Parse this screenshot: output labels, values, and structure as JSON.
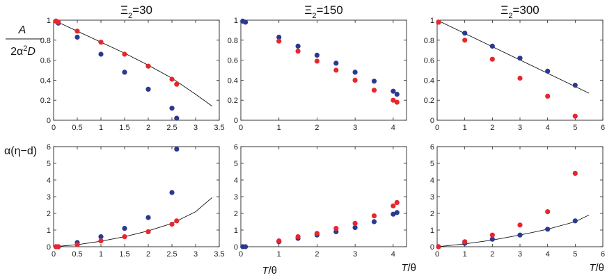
{
  "figure": {
    "row_labels": {
      "top": {
        "num": "A",
        "den_pre": "2",
        "den_alpha": "α",
        "den_sup": "2",
        "den_post": "D"
      },
      "bottom": "α(η−d)"
    },
    "xlabel": "T/θ",
    "xlabel_parts": {
      "italic": "T",
      "rest": "/θ"
    }
  },
  "colors": {
    "blue": "#2b3990",
    "red": "#e8262c",
    "curve": "#111111"
  },
  "chart_data": [
    {
      "type": "scatter",
      "id": "top-30",
      "title": "Ξ2=30",
      "title_base": "Ξ",
      "title_sub": "2",
      "title_rest": "=30",
      "xlim": [
        0,
        3.5
      ],
      "ylim": [
        0,
        1
      ],
      "xticks": [
        0,
        0.5,
        1,
        1.5,
        2,
        2.5,
        3,
        3.5
      ],
      "xtick_labels": [
        "0",
        "0.5",
        "1",
        "1.5",
        "2",
        "2.5",
        "3",
        "3.5"
      ],
      "yticks": [
        0,
        0.2,
        0.4,
        0.6,
        0.8,
        1
      ],
      "ytick_labels": [
        "0",
        "0.2",
        "0.4",
        "0.6",
        "0.8",
        "1"
      ],
      "series": [
        {
          "color": "blue",
          "x": [
            0.05,
            0.1,
            0.5,
            1.0,
            1.5,
            2.0,
            2.5,
            2.6
          ],
          "y": [
            0.99,
            0.97,
            0.83,
            0.66,
            0.48,
            0.31,
            0.12,
            0.02
          ]
        },
        {
          "color": "red",
          "x": [
            0.05,
            0.1,
            0.5,
            1.0,
            1.5,
            2.0,
            2.5,
            2.6
          ],
          "y": [
            0.99,
            0.98,
            0.89,
            0.78,
            0.66,
            0.54,
            0.41,
            0.36
          ]
        }
      ],
      "curve": {
        "x": [
          0,
          0.5,
          1,
          1.5,
          2,
          2.5,
          3,
          3.35
        ],
        "y": [
          1,
          0.89,
          0.78,
          0.67,
          0.55,
          0.42,
          0.26,
          0.14
        ]
      }
    },
    {
      "type": "scatter",
      "id": "top-150",
      "title": "Ξ2=150",
      "title_base": "Ξ",
      "title_sub": "2",
      "title_rest": "=150",
      "xlim": [
        0,
        4.35
      ],
      "ylim": [
        0,
        1
      ],
      "xticks": [
        0,
        1,
        2,
        3,
        4
      ],
      "xtick_labels": [
        "0",
        "1",
        "2",
        "3",
        "4"
      ],
      "yticks": [
        0,
        0.2,
        0.4,
        0.6,
        0.8,
        1
      ],
      "ytick_labels": [
        "0",
        "0.2",
        "0.4",
        "0.6",
        "0.8",
        "1"
      ],
      "series": [
        {
          "color": "blue",
          "x": [
            0.05,
            0.12,
            1.0,
            1.5,
            2.0,
            2.5,
            3.0,
            3.5,
            4.0,
            4.1
          ],
          "y": [
            0.99,
            0.98,
            0.83,
            0.74,
            0.65,
            0.57,
            0.48,
            0.39,
            0.29,
            0.26
          ]
        },
        {
          "color": "red",
          "x": [
            1.0,
            1.5,
            2.0,
            2.5,
            3.0,
            3.5,
            4.0,
            4.1
          ],
          "y": [
            0.79,
            0.69,
            0.59,
            0.5,
            0.4,
            0.3,
            0.2,
            0.18
          ]
        }
      ]
    },
    {
      "type": "scatter",
      "id": "top-300",
      "title": "Ξ2=300",
      "title_base": "Ξ",
      "title_sub": "2",
      "title_rest": "=300",
      "xlim": [
        0,
        6
      ],
      "ylim": [
        0,
        1
      ],
      "xticks": [
        0,
        1,
        2,
        3,
        4,
        5,
        6
      ],
      "xtick_labels": [
        "0",
        "1",
        "2",
        "3",
        "4",
        "5",
        "6"
      ],
      "yticks": [
        0,
        0.2,
        0.4,
        0.6,
        0.8,
        1
      ],
      "ytick_labels": [
        "0",
        "0.2",
        "0.4",
        "0.6",
        "0.8",
        "1"
      ],
      "series": [
        {
          "color": "blue",
          "x": [
            0.05,
            1,
            2,
            3,
            4,
            5
          ],
          "y": [
            0.98,
            0.87,
            0.74,
            0.62,
            0.49,
            0.35
          ]
        },
        {
          "color": "red",
          "x": [
            0.05,
            1,
            2,
            3,
            4,
            5
          ],
          "y": [
            0.98,
            0.8,
            0.61,
            0.42,
            0.24,
            0.04
          ]
        }
      ],
      "curve": {
        "x": [
          0,
          5.5
        ],
        "y": [
          1,
          0.27
        ]
      }
    },
    {
      "type": "scatter",
      "id": "bottom-30",
      "xlim": [
        0,
        3.5
      ],
      "ylim": [
        0,
        6
      ],
      "xticks": [
        0,
        0.5,
        1,
        1.5,
        2,
        2.5,
        3,
        3.5
      ],
      "xtick_labels": [
        "0",
        "0.5",
        "1",
        "1.5",
        "2",
        "2.5",
        "3",
        "3.5"
      ],
      "yticks": [
        0,
        1,
        2,
        3,
        4,
        5,
        6
      ],
      "ytick_labels": [
        "0",
        "1",
        "2",
        "3",
        "4",
        "5",
        "6"
      ],
      "series": [
        {
          "color": "blue",
          "x": [
            0.05,
            0.1,
            0.5,
            1.0,
            1.5,
            2.0,
            2.5,
            2.6
          ],
          "y": [
            0.0,
            0.0,
            0.25,
            0.6,
            1.1,
            1.75,
            3.25,
            5.85
          ]
        },
        {
          "color": "red",
          "x": [
            0.05,
            0.1,
            0.5,
            1.0,
            1.5,
            2.0,
            2.5,
            2.6
          ],
          "y": [
            0.0,
            0.0,
            0.12,
            0.35,
            0.6,
            0.9,
            1.35,
            1.55
          ]
        }
      ],
      "curve": {
        "x": [
          0,
          0.5,
          1,
          1.5,
          2,
          2.5,
          3,
          3.35
        ],
        "y": [
          0,
          0.12,
          0.33,
          0.6,
          0.95,
          1.4,
          2.1,
          2.95
        ]
      }
    },
    {
      "type": "scatter",
      "id": "bottom-150",
      "xlim": [
        0,
        4.35
      ],
      "ylim": [
        0,
        6
      ],
      "xticks": [
        0,
        1,
        2,
        3,
        4
      ],
      "xtick_labels": [
        "0",
        "1",
        "2",
        "3",
        "4"
      ],
      "yticks": [
        0,
        1,
        2,
        3,
        4,
        5,
        6
      ],
      "ytick_labels": [
        "0",
        "1",
        "2",
        "3",
        "4",
        "5",
        "6"
      ],
      "series": [
        {
          "color": "blue",
          "x": [
            0.05,
            0.12,
            1.0,
            1.5,
            2.0,
            2.5,
            3.0,
            3.5,
            4.0,
            4.1
          ],
          "y": [
            0.0,
            0.0,
            0.3,
            0.5,
            0.7,
            0.9,
            1.15,
            1.5,
            1.95,
            2.05
          ]
        },
        {
          "color": "red",
          "x": [
            1.0,
            1.5,
            2.0,
            2.5,
            3.0,
            3.5,
            4.0,
            4.1
          ],
          "y": [
            0.35,
            0.6,
            0.8,
            1.1,
            1.4,
            1.85,
            2.45,
            2.65
          ]
        }
      ]
    },
    {
      "type": "scatter",
      "id": "bottom-300",
      "xlim": [
        0,
        6
      ],
      "ylim": [
        0,
        6
      ],
      "xticks": [
        0,
        1,
        2,
        3,
        4,
        5,
        6
      ],
      "xtick_labels": [
        "0",
        "1",
        "2",
        "3",
        "4",
        "5",
        "6"
      ],
      "yticks": [
        0,
        1,
        2,
        3,
        4,
        5,
        6
      ],
      "ytick_labels": [
        "0",
        "1",
        "2",
        "3",
        "4",
        "5",
        "6"
      ],
      "series": [
        {
          "color": "blue",
          "x": [
            0.05,
            1,
            2,
            3,
            4,
            5
          ],
          "y": [
            0.0,
            0.2,
            0.45,
            0.7,
            1.05,
            1.55
          ]
        },
        {
          "color": "red",
          "x": [
            0.05,
            1,
            2,
            3,
            4,
            5
          ],
          "y": [
            0.0,
            0.3,
            0.7,
            1.3,
            2.1,
            4.4
          ]
        }
      ],
      "curve": {
        "x": [
          0,
          1,
          2,
          3,
          4,
          5,
          5.5
        ],
        "y": [
          0,
          0.17,
          0.4,
          0.7,
          1.05,
          1.5,
          1.9
        ]
      }
    }
  ]
}
